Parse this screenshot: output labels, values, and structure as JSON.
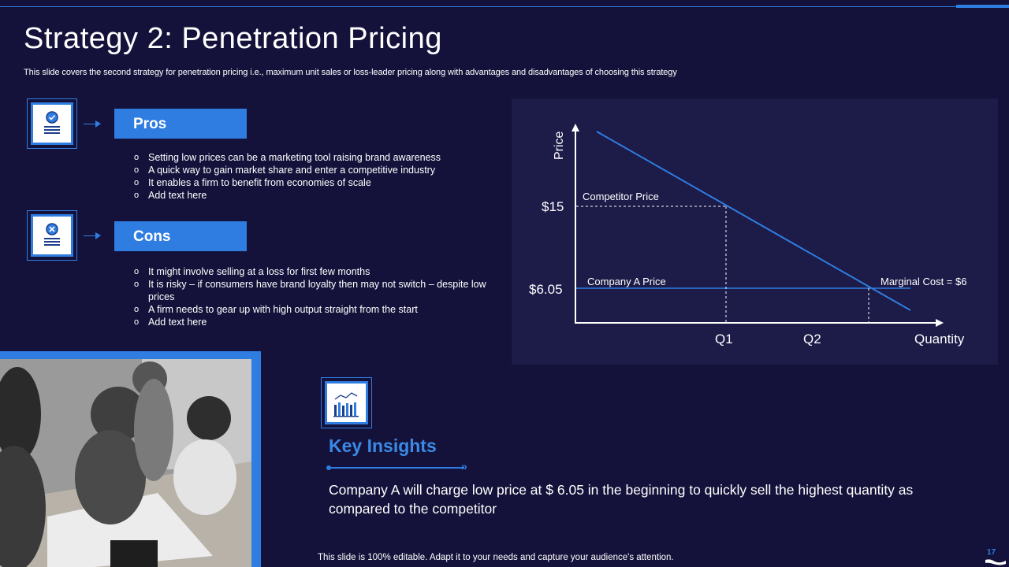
{
  "slide": {
    "title": "Strategy 2: Penetration Pricing",
    "subtitle": "This slide covers the second strategy for penetration pricing i.e., maximum unit sales or loss-leader pricing along with advantages and disadvantages of choosing this strategy",
    "footer": "This slide is 100% editable. Adapt it to your needs and capture your audience's attention.",
    "page_number": "17"
  },
  "pros": {
    "label": "Pros",
    "items": [
      "Setting low prices can be a marketing tool raising brand awareness",
      "A quick way to gain market share and enter a competitive industry",
      "It enables a firm to benefit from economies of scale",
      "Add text here"
    ]
  },
  "cons": {
    "label": "Cons",
    "items": [
      "It might involve  selling at a loss for first few months",
      "It is risky – if consumers have  brand loyalty then may not switch – despite low prices",
      "A firm needs to gear up with high output straight from the start",
      "Add text here"
    ]
  },
  "chart_data": {
    "type": "line",
    "ylabel": "Price",
    "xlabel": "Quantity",
    "y_ticks": [
      "$15",
      "$6.05"
    ],
    "x_ticks": [
      "Q1",
      "Q2"
    ],
    "annotations": [
      "Competitor Price",
      "Company A Price",
      "Marginal Cost = $6"
    ],
    "series": [
      {
        "name": "",
        "note": "downward-sloping demand line",
        "color": "#2f7de1"
      }
    ]
  },
  "insights": {
    "title": "Key Insights",
    "text": "Company A will charge low price at $ 6.05 in the beginning to quickly sell the highest quantity as compared to the competitor"
  },
  "colors": {
    "background": "#14123a",
    "accent": "#2f7de1",
    "panel": "#1d1b48"
  },
  "icons": {
    "pros": "document-check-icon",
    "cons": "document-cross-icon",
    "insights": "bar-chart-icon"
  }
}
